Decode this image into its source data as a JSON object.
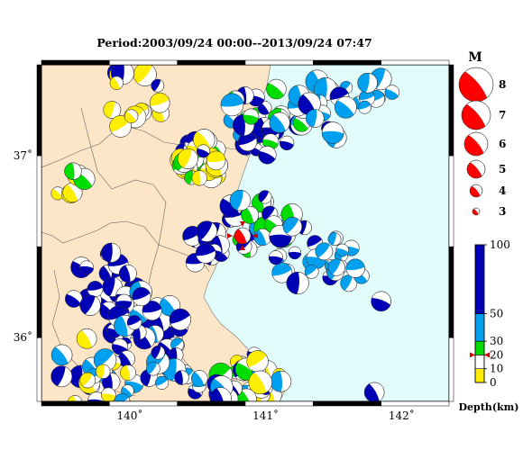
{
  "title": "Period:2003/09/24 00:00--2013/09/24 07:47",
  "map": {
    "lon_range": [
      139.35,
      142.35
    ],
    "lat_range": [
      35.65,
      37.5
    ],
    "lon_ticks": [
      {
        "value": 140,
        "label": "140˚"
      },
      {
        "value": 141,
        "label": "141˚"
      },
      {
        "value": 142,
        "label": "142˚"
      }
    ],
    "lat_ticks": [
      {
        "value": 36,
        "label": "36˚"
      },
      {
        "value": 37,
        "label": "37˚"
      }
    ],
    "colors": {
      "land": "#fde5c7",
      "sea": "#e2fcfc",
      "border": "#555555",
      "frame_dark": "#000000",
      "frame_light": "#ffffff"
    },
    "epicenter": {
      "lon": 140.83,
      "lat": 36.56,
      "magnitude": 5.4
    }
  },
  "magnitude_legend": {
    "title": "M",
    "entries": [
      {
        "label": "8",
        "value": 8
      },
      {
        "label": "7",
        "value": 7
      },
      {
        "label": "6",
        "value": 6
      },
      {
        "label": "5",
        "value": 5
      },
      {
        "label": "4",
        "value": 4
      },
      {
        "label": "3",
        "value": 3
      }
    ],
    "color": "#ff0000"
  },
  "depth_legend": {
    "title": "Depth(km)",
    "max": 100,
    "segments": [
      {
        "from": 0,
        "to": 10,
        "color": "#ffee00"
      },
      {
        "from": 10,
        "to": 20,
        "color": "#ffffff"
      },
      {
        "from": 20,
        "to": 30,
        "color": "#00dd00"
      },
      {
        "from": 30,
        "to": 50,
        "color": "#00a0f0"
      },
      {
        "from": 50,
        "to": 100,
        "color": "#0000b4"
      }
    ],
    "ticks": [
      {
        "value": 100,
        "label": "100"
      },
      {
        "value": 50,
        "label": "50"
      },
      {
        "value": 30,
        "label": "30"
      },
      {
        "value": 20,
        "label": "20"
      },
      {
        "value": 10,
        "label": "10"
      },
      {
        "value": 0,
        "label": "0"
      }
    ],
    "event_depth": 20
  },
  "clusters": [
    {
      "lon": 140.55,
      "lat": 36.98,
      "spread": 0.18,
      "count": 40,
      "depths": [
        5,
        8,
        25,
        60
      ]
    },
    {
      "lon": 140.0,
      "lat": 37.3,
      "spread": 0.25,
      "count": 14,
      "depths": [
        5,
        8,
        70
      ]
    },
    {
      "lon": 139.55,
      "lat": 36.85,
      "spread": 0.12,
      "count": 6,
      "depths": [
        5,
        8,
        25
      ]
    },
    {
      "lon": 141.0,
      "lat": 37.2,
      "spread": 0.3,
      "count": 30,
      "depths": [
        70,
        80,
        45,
        25
      ]
    },
    {
      "lon": 141.45,
      "lat": 37.25,
      "spread": 0.25,
      "count": 16,
      "depths": [
        40,
        45,
        70
      ]
    },
    {
      "lon": 141.8,
      "lat": 37.35,
      "spread": 0.15,
      "count": 6,
      "depths": [
        40,
        45
      ]
    },
    {
      "lon": 140.95,
      "lat": 36.65,
      "spread": 0.25,
      "count": 28,
      "depths": [
        70,
        45,
        25,
        80
      ]
    },
    {
      "lon": 141.35,
      "lat": 36.45,
      "spread": 0.3,
      "count": 22,
      "depths": [
        40,
        45,
        70
      ]
    },
    {
      "lon": 140.55,
      "lat": 36.5,
      "spread": 0.15,
      "count": 12,
      "depths": [
        70,
        80
      ]
    },
    {
      "lon": 139.8,
      "lat": 36.3,
      "spread": 0.25,
      "count": 20,
      "depths": [
        80,
        70,
        90
      ]
    },
    {
      "lon": 140.15,
      "lat": 36.05,
      "spread": 0.3,
      "count": 30,
      "depths": [
        80,
        70,
        45
      ]
    },
    {
      "lon": 139.75,
      "lat": 35.8,
      "spread": 0.3,
      "count": 24,
      "depths": [
        70,
        80,
        45,
        8
      ]
    },
    {
      "lon": 140.3,
      "lat": 35.8,
      "spread": 0.25,
      "count": 18,
      "depths": [
        70,
        80,
        45
      ]
    },
    {
      "lon": 140.95,
      "lat": 35.8,
      "spread": 0.2,
      "count": 22,
      "depths": [
        25,
        45,
        8,
        70
      ]
    },
    {
      "lon": 140.75,
      "lat": 35.72,
      "spread": 0.15,
      "count": 10,
      "depths": [
        80,
        45,
        25
      ]
    },
    {
      "lon": 141.6,
      "lat": 36.3,
      "spread": 0.15,
      "count": 4,
      "depths": [
        40,
        45
      ]
    }
  ],
  "singles": [
    {
      "lon": 141.85,
      "lat": 36.2,
      "depth": 70,
      "magnitude": 5.0
    },
    {
      "lon": 141.8,
      "lat": 35.7,
      "depth": 70,
      "magnitude": 4.8
    },
    {
      "lon": 141.75,
      "lat": 37.4,
      "depth": 45,
      "magnitude": 5.8
    }
  ]
}
